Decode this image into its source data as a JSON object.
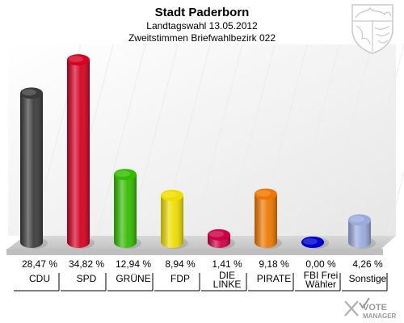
{
  "chart_data": {
    "type": "bar",
    "title": "Stadt Paderborn",
    "subtitles": [
      "Landtagswahl 13.05.2012",
      "Zweitstimmen Briefwahlbezirk 022"
    ],
    "categories": [
      "CDU",
      "SPD",
      "GRÜNE",
      "FDP",
      "DIE LINKE",
      "PIRATE",
      "FBI Frei Wähler",
      "Sonstige"
    ],
    "category_lines": [
      [
        "CDU"
      ],
      [
        "SPD"
      ],
      [
        "GRÜNE"
      ],
      [
        "FDP"
      ],
      [
        "DIE",
        "LINKE"
      ],
      [
        "PIRATE"
      ],
      [
        "FBI Frei",
        "Wähler"
      ],
      [
        "Sonstige"
      ]
    ],
    "values": [
      28.47,
      34.82,
      12.94,
      8.94,
      1.41,
      9.18,
      0.0,
      4.26
    ],
    "value_labels": [
      "28,47 %",
      "34,82 %",
      "12,94 %",
      "8,94 %",
      "1,41 %",
      "9,18 %",
      "0,00 %",
      "4,26 %"
    ],
    "colors": [
      "#3a3a3a",
      "#d40020",
      "#33bb00",
      "#eedd00",
      "#cc0044",
      "#ee7700",
      "#0000cc",
      "#99aadd"
    ],
    "ylim": [
      0,
      35
    ],
    "grid": true
  },
  "watermark": {
    "line1": "VOTE",
    "line2": "MANAGER"
  },
  "crest_icon": "nrw-coat-of-arms-icon"
}
